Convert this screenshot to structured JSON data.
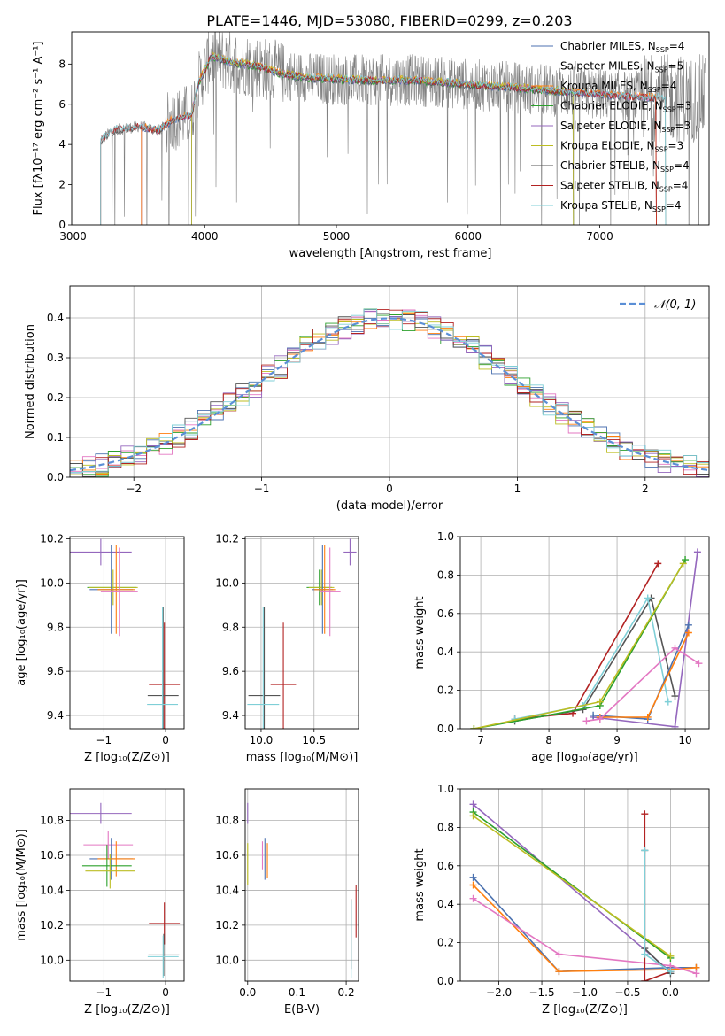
{
  "figure_title": "PLATE=1446, MJD=53080, FIBERID=0299, z=0.203",
  "colors": {
    "Chabrier MILES": "#4c72b0",
    "Salpeter MILES": "#e377c2",
    "Kroupa MILES": "#ff7f0e",
    "Chabrier ELODIE": "#2ca02c",
    "Salpeter ELODIE": "#9467bd",
    "Kroupa ELODIE": "#bcbd22",
    "Chabrier STELIB": "#555555",
    "Salpeter STELIB": "#b22222",
    "Kroupa STELIB": "#7fcfd7",
    "data": "#808080",
    "normal": "#5b8fd6"
  },
  "chart_data": [
    {
      "id": "spectrum",
      "type": "line",
      "xlabel": "wavelength [Angstrom, rest frame]",
      "ylabel": "Flux [fλ10⁻¹⁷ erg cm⁻² s⁻¹ A⁻¹]",
      "xlim": [
        2990,
        7830
      ],
      "ylim": [
        0,
        9.6
      ],
      "xticks": [
        3000,
        4000,
        5000,
        6000,
        7000
      ],
      "yticks": [
        0,
        2,
        4,
        6,
        8
      ],
      "legend": [
        "Chabrier MILES, N_SSP=4",
        "Salpeter MILES, N_SSP=5",
        "Kroupa MILES, N_SSP=4",
        "Chabrier ELODIE, N_SSP=3",
        "Salpeter ELODIE, N_SSP=3",
        "Kroupa ELODIE, N_SSP=3",
        "Chabrier STELIB, N_SSP=4",
        "Salpeter STELIB, N_SSP=4",
        "Kroupa STELIB, N_SSP=4"
      ],
      "legend_loc": "right",
      "continuum_nodes": [
        [
          3200,
          0
        ],
        [
          3210,
          4.2
        ],
        [
          3300,
          4.7
        ],
        [
          3500,
          4.9
        ],
        [
          3650,
          4.7
        ],
        [
          3750,
          5.2
        ],
        [
          3900,
          5.5
        ],
        [
          3950,
          7.0
        ],
        [
          4050,
          8.4
        ],
        [
          4200,
          8.1
        ],
        [
          4400,
          7.9
        ],
        [
          4600,
          7.5
        ],
        [
          4800,
          7.3
        ],
        [
          5200,
          7.2
        ],
        [
          5600,
          7.2
        ],
        [
          6000,
          7.0
        ],
        [
          6400,
          6.8
        ],
        [
          6800,
          6.6
        ],
        [
          7200,
          6.4
        ],
        [
          7500,
          6.3
        ]
      ]
    },
    {
      "id": "residuals",
      "type": "line",
      "xlabel": "(data-model)/error",
      "ylabel": "Normed distribution",
      "xlim": [
        -2.5,
        2.5
      ],
      "ylim": [
        0,
        0.48
      ],
      "xticks": [
        -2,
        -1,
        0,
        1,
        2
      ],
      "yticks": [
        0.0,
        0.1,
        0.2,
        0.3,
        0.4
      ],
      "legend": [
        "𝒩(0, 1)"
      ],
      "legend_loc": "top-right",
      "normal": {
        "mean": 0,
        "sigma": 1
      }
    },
    {
      "id": "age_vs_Z",
      "type": "scatter",
      "xlabel": "Z [log₁₀(Z/Z⊙)]",
      "ylabel": "age  [log₁₀(age/yr)]",
      "xlim": [
        -1.55,
        0.3
      ],
      "ylim": [
        9.34,
        10.21
      ],
      "xticks": [
        -1,
        0
      ],
      "yticks": [
        9.4,
        9.6,
        9.8,
        10.0,
        10.2
      ],
      "points": [
        {
          "model": "Salpeter ELODIE",
          "x": -1.05,
          "y": 10.14,
          "xerr": 0.5,
          "yerr": 0.06
        },
        {
          "model": "Chabrier ELODIE",
          "x": -0.87,
          "y": 9.98,
          "xerr": 0.4,
          "yerr": 0.08
        },
        {
          "model": "Kroupa ELODIE",
          "x": -0.85,
          "y": 9.98,
          "xerr": 0.4,
          "yerr": 0.08
        },
        {
          "model": "Chabrier MILES",
          "x": -0.88,
          "y": 9.97,
          "xerr": 0.35,
          "yerr": 0.2
        },
        {
          "model": "Kroupa MILES",
          "x": -0.8,
          "y": 9.97,
          "xerr": 0.3,
          "yerr": 0.2
        },
        {
          "model": "Salpeter MILES",
          "x": -0.75,
          "y": 9.96,
          "xerr": 0.3,
          "yerr": 0.2
        },
        {
          "model": "Salpeter STELIB",
          "x": -0.02,
          "y": 9.54,
          "xerr": 0.25,
          "yerr": 0.28
        },
        {
          "model": "Chabrier STELIB",
          "x": -0.04,
          "y": 9.49,
          "xerr": 0.25,
          "yerr": 0.4
        },
        {
          "model": "Kroupa STELIB",
          "x": -0.05,
          "y": 9.45,
          "xerr": 0.25,
          "yerr": 0.44
        }
      ]
    },
    {
      "id": "age_vs_mass",
      "type": "scatter",
      "xlabel": "mass [log₁₀(M/M⊙)]",
      "ylabel": "",
      "xlim": [
        9.85,
        10.92
      ],
      "ylim": [
        9.34,
        10.21
      ],
      "xticks": [
        10.0,
        10.5
      ],
      "yticks": [
        9.4,
        9.6,
        9.8,
        10.0,
        10.2
      ],
      "points": [
        {
          "model": "Salpeter ELODIE",
          "x": 10.84,
          "y": 10.14,
          "xerr": 0.06,
          "yerr": 0.06
        },
        {
          "model": "Chabrier ELODIE",
          "x": 10.55,
          "y": 9.98,
          "xerr": 0.12,
          "yerr": 0.08
        },
        {
          "model": "Kroupa ELODIE",
          "x": 10.57,
          "y": 9.98,
          "xerr": 0.12,
          "yerr": 0.08
        },
        {
          "model": "Chabrier MILES",
          "x": 10.58,
          "y": 9.97,
          "xerr": 0.1,
          "yerr": 0.2
        },
        {
          "model": "Kroupa MILES",
          "x": 10.6,
          "y": 9.97,
          "xerr": 0.1,
          "yerr": 0.2
        },
        {
          "model": "Salpeter MILES",
          "x": 10.65,
          "y": 9.96,
          "xerr": 0.1,
          "yerr": 0.2
        },
        {
          "model": "Salpeter STELIB",
          "x": 10.21,
          "y": 9.54,
          "xerr": 0.12,
          "yerr": 0.28
        },
        {
          "model": "Chabrier STELIB",
          "x": 10.03,
          "y": 9.49,
          "xerr": 0.15,
          "yerr": 0.4
        },
        {
          "model": "Kroupa STELIB",
          "x": 10.02,
          "y": 9.45,
          "xerr": 0.15,
          "yerr": 0.44
        }
      ]
    },
    {
      "id": "weight_vs_age",
      "type": "line",
      "xlabel": "age  [log₁₀(age/yr)]",
      "ylabel": "mass weight",
      "xlim": [
        6.7,
        10.35
      ],
      "ylim": [
        0,
        1.0
      ],
      "xticks": [
        7,
        8,
        9,
        10
      ],
      "yticks": [
        0.0,
        0.2,
        0.4,
        0.6,
        0.8,
        1.0
      ],
      "series": [
        {
          "model": "Salpeter STELIB",
          "points": [
            [
              7.5,
              0.05
            ],
            [
              8.35,
              0.08
            ],
            [
              9.6,
              0.86
            ]
          ]
        },
        {
          "model": "Chabrier STELIB",
          "points": [
            [
              7.5,
              0.04
            ],
            [
              8.5,
              0.1
            ],
            [
              9.5,
              0.68
            ],
            [
              9.85,
              0.17
            ]
          ]
        },
        {
          "model": "Kroupa STELIB",
          "points": [
            [
              7.5,
              0.05
            ],
            [
              8.5,
              0.12
            ],
            [
              9.45,
              0.68
            ],
            [
              9.75,
              0.14
            ]
          ]
        },
        {
          "model": "Chabrier ELODIE",
          "points": [
            [
              6.9,
              0.0
            ],
            [
              8.75,
              0.12
            ],
            [
              10.0,
              0.88
            ]
          ]
        },
        {
          "model": "Kroupa ELODIE",
          "points": [
            [
              6.9,
              0.0
            ],
            [
              8.75,
              0.14
            ],
            [
              9.97,
              0.86
            ]
          ]
        },
        {
          "model": "Salpeter ELODIE",
          "points": [
            [
              8.65,
              0.06
            ],
            [
              9.85,
              0.01
            ],
            [
              10.18,
              0.92
            ]
          ]
        },
        {
          "model": "Chabrier MILES",
          "points": [
            [
              8.65,
              0.07
            ],
            [
              9.45,
              0.05
            ],
            [
              10.05,
              0.54
            ]
          ]
        },
        {
          "model": "Kroupa MILES",
          "points": [
            [
              8.75,
              0.06
            ],
            [
              9.45,
              0.06
            ],
            [
              10.05,
              0.5
            ]
          ]
        },
        {
          "model": "Salpeter MILES",
          "points": [
            [
              8.55,
              0.04
            ],
            [
              8.75,
              0.05
            ],
            [
              9.85,
              0.42
            ],
            [
              10.2,
              0.34
            ]
          ]
        }
      ]
    },
    {
      "id": "mass_vs_Z",
      "type": "scatter",
      "xlabel": "Z [log₁₀(Z/Z⊙)]",
      "ylabel": "mass [log₁₀(M/M⊙)]",
      "xlim": [
        -1.55,
        0.3
      ],
      "ylim": [
        9.88,
        10.98
      ],
      "xticks": [
        -1,
        0
      ],
      "yticks": [
        10.0,
        10.2,
        10.4,
        10.6,
        10.8
      ],
      "points": [
        {
          "model": "Salpeter ELODIE",
          "x": -1.05,
          "y": 10.84,
          "xerr": 0.5,
          "yerr": 0.06
        },
        {
          "model": "Salpeter MILES",
          "x": -0.93,
          "y": 10.66,
          "xerr": 0.4,
          "yerr": 0.08
        },
        {
          "model": "Chabrier MILES",
          "x": -0.88,
          "y": 10.58,
          "xerr": 0.35,
          "yerr": 0.12
        },
        {
          "model": "Kroupa MILES",
          "x": -0.8,
          "y": 10.58,
          "xerr": 0.3,
          "yerr": 0.1
        },
        {
          "model": "Chabrier ELODIE",
          "x": -0.95,
          "y": 10.54,
          "xerr": 0.4,
          "yerr": 0.12
        },
        {
          "model": "Kroupa ELODIE",
          "x": -0.9,
          "y": 10.51,
          "xerr": 0.4,
          "yerr": 0.1
        },
        {
          "model": "Salpeter STELIB",
          "x": -0.02,
          "y": 10.21,
          "xerr": 0.25,
          "yerr": 0.12
        },
        {
          "model": "Chabrier STELIB",
          "x": -0.03,
          "y": 10.03,
          "xerr": 0.25,
          "yerr": 0.12
        },
        {
          "model": "Kroupa STELIB",
          "x": -0.04,
          "y": 10.02,
          "xerr": 0.25,
          "yerr": 0.12
        }
      ]
    },
    {
      "id": "mass_vs_ebv",
      "type": "scatter",
      "xlabel": "E(B-V)",
      "ylabel": "",
      "xlim": [
        -0.005,
        0.225
      ],
      "ylim": [
        9.88,
        10.98
      ],
      "xticks": [
        0.0,
        0.1,
        0.2
      ],
      "yticks": [
        10.0,
        10.2,
        10.4,
        10.6,
        10.8
      ],
      "points": [
        {
          "model": "Salpeter ELODIE",
          "x": 0.0,
          "y": 10.84,
          "yerr": 0.06
        },
        {
          "model": "Kroupa ELODIE",
          "x": 0.0,
          "y": 10.55,
          "yerr": 0.12
        },
        {
          "model": "Salpeter MILES",
          "x": 0.03,
          "y": 10.6,
          "yerr": 0.08
        },
        {
          "model": "Chabrier MILES",
          "x": 0.035,
          "y": 10.58,
          "yerr": 0.12
        },
        {
          "model": "Kroupa MILES",
          "x": 0.04,
          "y": 10.57,
          "yerr": 0.1
        },
        {
          "model": "Salpeter STELIB",
          "x": 0.22,
          "y": 10.28,
          "yerr": 0.15
        },
        {
          "model": "Chabrier STELIB",
          "x": 0.21,
          "y": 10.15,
          "yerr": 0.2
        },
        {
          "model": "Kroupa STELIB",
          "x": 0.21,
          "y": 10.12,
          "yerr": 0.22
        }
      ]
    },
    {
      "id": "weight_vs_Z",
      "type": "line",
      "xlabel": "Z [log₁₀(Z/Z⊙)]",
      "ylabel": "mass weight",
      "xlim": [
        -2.45,
        0.45
      ],
      "ylim": [
        0,
        1.0
      ],
      "xticks": [
        -2.0,
        -1.5,
        -1.0,
        -0.5,
        0.0
      ],
      "yticks": [
        0.0,
        0.2,
        0.4,
        0.6,
        0.8,
        1.0
      ],
      "series": [
        {
          "model": "Salpeter ELODIE",
          "points": [
            [
              -2.3,
              0.92
            ],
            [
              0.0,
              0.05
            ]
          ]
        },
        {
          "model": "Chabrier ELODIE",
          "points": [
            [
              -2.3,
              0.88
            ],
            [
              0.0,
              0.12
            ]
          ]
        },
        {
          "model": "Kroupa ELODIE",
          "points": [
            [
              -2.3,
              0.86
            ],
            [
              0.0,
              0.13
            ]
          ]
        },
        {
          "model": "Chabrier MILES",
          "points": [
            [
              -2.3,
              0.54
            ],
            [
              -1.3,
              0.05
            ],
            [
              0.0,
              0.07
            ],
            [
              0.3,
              0.07
            ]
          ]
        },
        {
          "model": "Kroupa MILES",
          "points": [
            [
              -2.3,
              0.5
            ],
            [
              -1.3,
              0.05
            ],
            [
              0.0,
              0.06
            ],
            [
              0.3,
              0.07
            ]
          ]
        },
        {
          "model": "Salpeter MILES",
          "points": [
            [
              -2.3,
              0.43
            ],
            [
              -1.3,
              0.14
            ],
            [
              0.0,
              0.08
            ],
            [
              0.3,
              0.04
            ]
          ]
        },
        {
          "model": "Salpeter STELIB",
          "points": [
            [
              -0.3,
              0.87
            ],
            [
              -0.3,
              0.0
            ],
            [
              0.0,
              0.05
            ]
          ]
        },
        {
          "model": "Chabrier STELIB",
          "points": [
            [
              -0.3,
              0.68
            ],
            [
              -0.3,
              0.17
            ],
            [
              0.0,
              0.04
            ]
          ]
        },
        {
          "model": "Kroupa STELIB",
          "points": [
            [
              -0.3,
              0.68
            ],
            [
              -0.3,
              0.14
            ],
            [
              0.0,
              0.05
            ]
          ]
        }
      ]
    }
  ]
}
